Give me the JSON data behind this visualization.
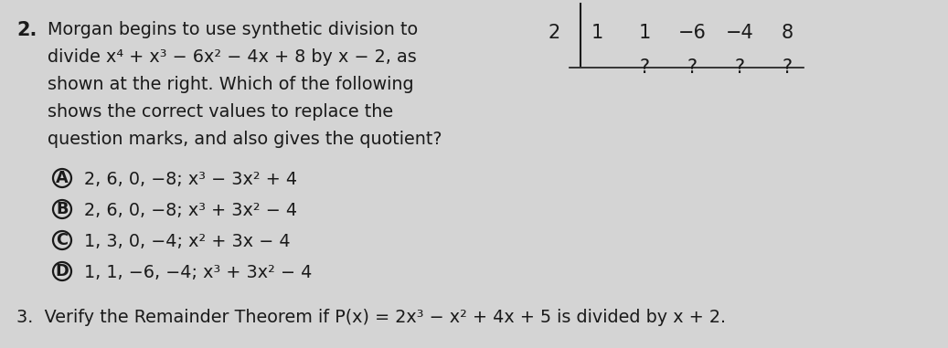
{
  "bg_color": "#d4d4d4",
  "text_color": "#1a1a1a",
  "title_num": "2.",
  "question_lines": [
    "Morgan begins to use synthetic division to",
    "divide x⁴ + x³ − 6x² − 4x + 8 by x − 2, as",
    "shown at the right. Which of the following",
    "shows the correct values to replace the",
    "question marks, and also gives the quotient?"
  ],
  "choices": [
    {
      "label": "A",
      "text": "2, 6, 0, −8; x³ − 3x² + 4"
    },
    {
      "label": "B",
      "text": "2, 6, 0, −8; x³ + 3x² − 4"
    },
    {
      "label": "C",
      "text": "1, 3, 0, −4; x² + 3x − 4"
    },
    {
      "label": "D",
      "text": "1, 1, −6, −4; x³ + 3x² − 4"
    }
  ],
  "problem3_text": "3.  Verify the Remainder Theorem if P(x) = 2x³ − x² + 4x + 5 is divided by x + 2.",
  "synth_div": {
    "divisor": "2",
    "row1": [
      "1",
      "1",
      "−6",
      "−4",
      "8"
    ],
    "row2": [
      "",
      "?",
      "?",
      "?",
      "?"
    ]
  },
  "fs_main": 13.8,
  "fs_synth": 15.0,
  "fs_choices": 13.8,
  "fs_p3": 13.8,
  "fs_bold": 15.0
}
